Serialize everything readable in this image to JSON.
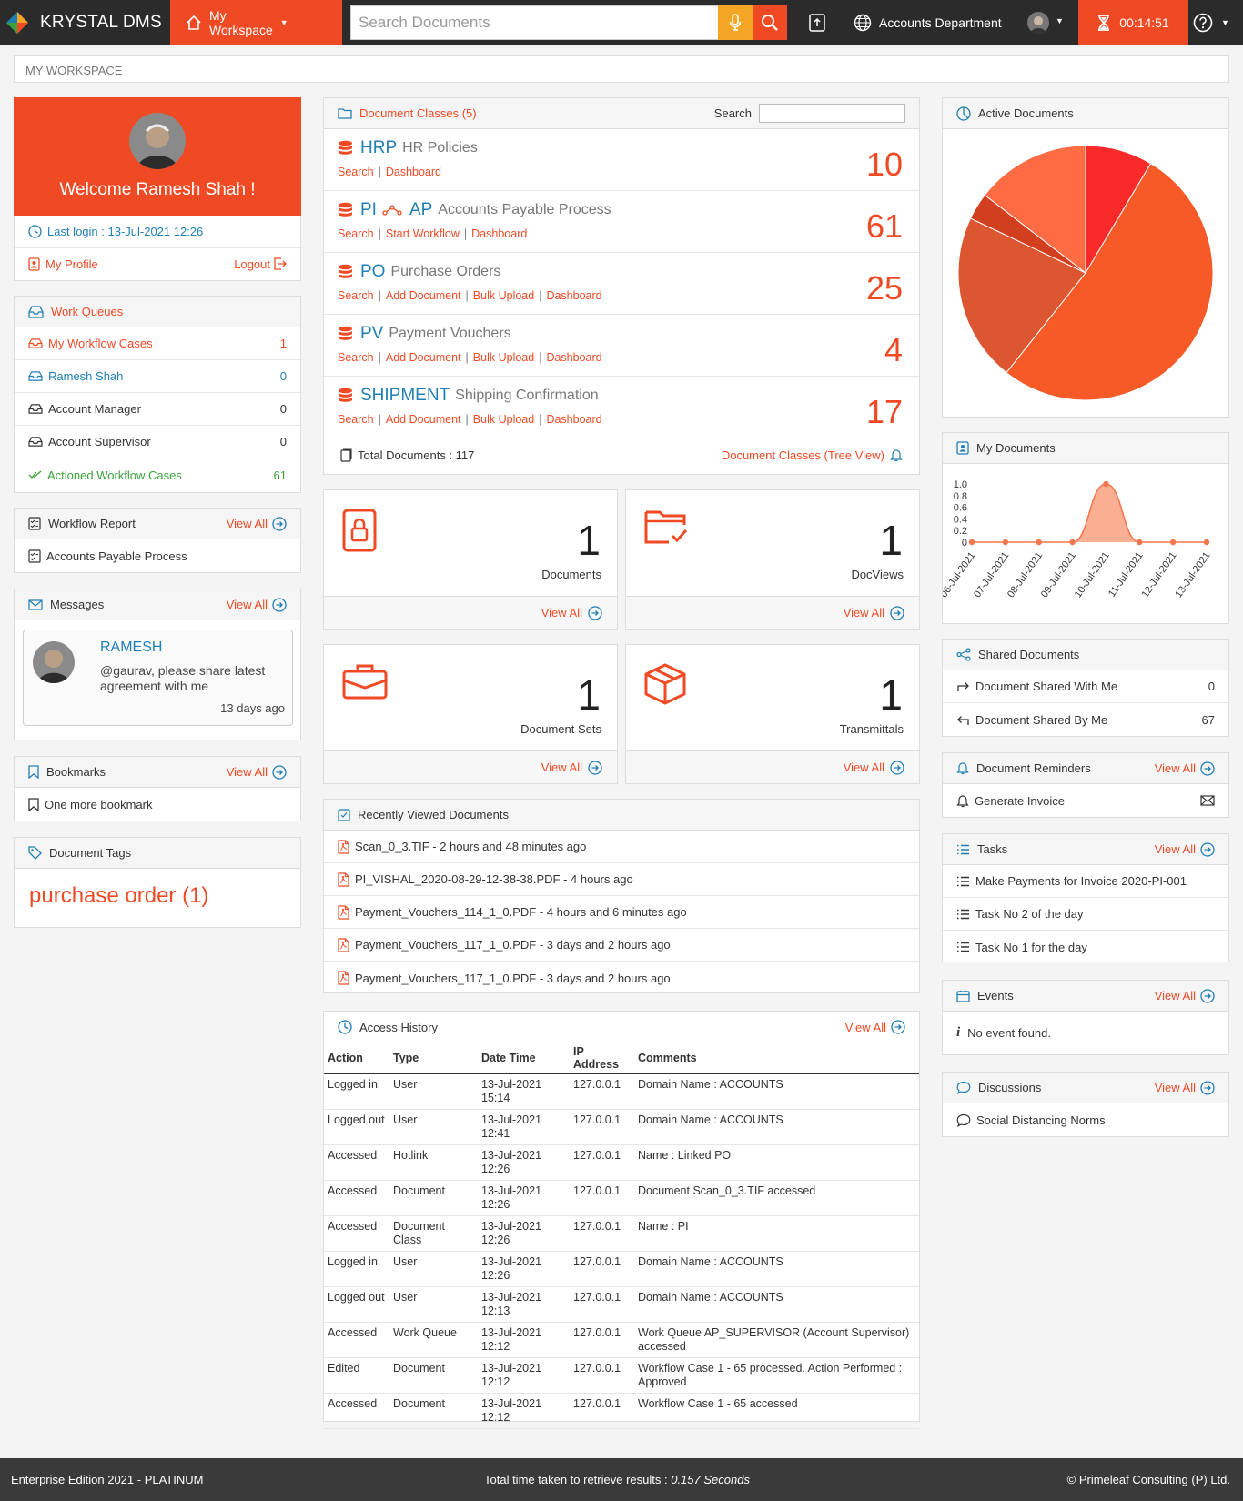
{
  "header": {
    "brand": "KRYSTAL DMS",
    "workspace_label": "My Workspace",
    "search_placeholder": "Search Documents",
    "department": "Accounts Department",
    "timer": "00:14:51"
  },
  "breadcrumb": "MY WORKSPACE",
  "welcome": {
    "text": "Welcome Ramesh Shah !",
    "last_login": "Last login : 13-Jul-2021 12:26",
    "profile": "My Profile",
    "logout": "Logout"
  },
  "work_queues": {
    "title": "Work Queues",
    "items": [
      {
        "label": "My Workflow Cases",
        "count": "1"
      },
      {
        "label": "Ramesh Shah",
        "count": "0"
      },
      {
        "label": "Account Manager",
        "count": "0"
      },
      {
        "label": "Account Supervisor",
        "count": "0"
      },
      {
        "label": "Actioned Workflow Cases",
        "count": "61"
      }
    ]
  },
  "workflow_report": {
    "title": "Workflow Report",
    "view_all": "View All",
    "item": "Accounts Payable Process"
  },
  "messages": {
    "title": "Messages",
    "view_all": "View All",
    "sender": "RAMESH",
    "text": "@gaurav, please share latest agreement with me",
    "time": "13 days ago"
  },
  "bookmarks": {
    "title": "Bookmarks",
    "view_all": "View All",
    "item": "One more bookmark"
  },
  "tags": {
    "title": "Document Tags",
    "item": "purchase order (1)"
  },
  "doc_classes": {
    "title": "Document Classes (5)",
    "search_label": "Search",
    "items": [
      {
        "code": "HRP",
        "name": "HR Policies",
        "links": [
          "Search",
          "Dashboard"
        ],
        "count": "10"
      },
      {
        "code": "PI",
        "code2": "AP",
        "name": "Accounts Payable Process",
        "links": [
          "Search",
          "Start Workflow",
          "Dashboard"
        ],
        "count": "61"
      },
      {
        "code": "PO",
        "name": "Purchase Orders",
        "links": [
          "Search",
          "Add Document",
          "Bulk Upload",
          "Dashboard"
        ],
        "count": "25"
      },
      {
        "code": "PV",
        "name": "Payment Vouchers",
        "links": [
          "Search",
          "Add Document",
          "Bulk Upload",
          "Dashboard"
        ],
        "count": "4"
      },
      {
        "code": "SHIPMENT",
        "name": "Shipping Confirmation",
        "links": [
          "Search",
          "Add Document",
          "Bulk Upload",
          "Dashboard"
        ],
        "count": "17"
      }
    ],
    "total": "Total Documents : 117",
    "tree_view": "Document Classes (Tree View)"
  },
  "tiles": [
    {
      "count": "1",
      "label": "Documents",
      "view_all": "View All"
    },
    {
      "count": "1",
      "label": "DocViews",
      "view_all": "View All"
    },
    {
      "count": "1",
      "label": "Document Sets",
      "view_all": "View All"
    },
    {
      "count": "1",
      "label": "Transmittals",
      "view_all": "View All"
    }
  ],
  "recent": {
    "title": "Recently Viewed Documents",
    "items": [
      "Scan_0_3.TIF - 2 hours and 48 minutes ago",
      "PI_VISHAL_2020-08-29-12-38-38.PDF - 4 hours ago",
      "Payment_Vouchers_114_1_0.PDF - 4 hours and 6 minutes ago",
      "Payment_Vouchers_117_1_0.PDF - 3 days and 2 hours ago",
      "Payment_Vouchers_117_1_0.PDF - 3 days and 2 hours ago"
    ]
  },
  "access": {
    "title": "Access History",
    "view_all": "View All",
    "columns": [
      "Action",
      "Type",
      "Date Time",
      "IP Address",
      "Comments"
    ],
    "rows": [
      [
        "Logged in",
        "User",
        "13-Jul-2021 15:14",
        "127.0.0.1",
        "Domain Name : ACCOUNTS"
      ],
      [
        "Logged out",
        "User",
        "13-Jul-2021 12:41",
        "127.0.0.1",
        "Domain Name : ACCOUNTS"
      ],
      [
        "Accessed",
        "Hotlink",
        "13-Jul-2021 12:26",
        "127.0.0.1",
        "Name : Linked PO"
      ],
      [
        "Accessed",
        "Document",
        "13-Jul-2021 12:26",
        "127.0.0.1",
        "Document Scan_0_3.TIF accessed"
      ],
      [
        "Accessed",
        "Document Class",
        "13-Jul-2021 12:26",
        "127.0.0.1",
        "Name : PI"
      ],
      [
        "Logged in",
        "User",
        "13-Jul-2021 12:26",
        "127.0.0.1",
        "Domain Name : ACCOUNTS"
      ],
      [
        "Logged out",
        "User",
        "13-Jul-2021 12:13",
        "127.0.0.1",
        "Domain Name : ACCOUNTS"
      ],
      [
        "Accessed",
        "Work Queue",
        "13-Jul-2021 12:12",
        "127.0.0.1",
        "Work Queue AP_SUPERVISOR (Account Supervisor) accessed"
      ],
      [
        "Edited",
        "Document",
        "13-Jul-2021 12:12",
        "127.0.0.1",
        "Workflow Case 1 - 65 processed. Action Performed : Approved"
      ],
      [
        "Accessed",
        "Document",
        "13-Jul-2021 12:12",
        "127.0.0.1",
        "Workflow Case 1 - 65 accessed"
      ]
    ]
  },
  "active_docs": {
    "title": "Active Documents"
  },
  "my_docs": {
    "title": "My Documents"
  },
  "chart_data": [
    {
      "type": "pie",
      "values": [
        10,
        61,
        25,
        4,
        17
      ],
      "colors": [
        "#fb2a2a",
        "#f55a27",
        "#dd5632",
        "#d23f1e",
        "#ff6c44"
      ]
    },
    {
      "type": "area",
      "categories": [
        "06-Jul-2021",
        "07-Jul-2021",
        "08-Jul-2021",
        "09-Jul-2021",
        "10-Jul-2021",
        "11-Jul-2021",
        "12-Jul-2021",
        "13-Jul-2021"
      ],
      "values": [
        0,
        0,
        0,
        0,
        1,
        0,
        0,
        0
      ],
      "yticks": [
        "1.0",
        "0.8",
        "0.6",
        "0.4",
        "0.2",
        "0"
      ],
      "ylim": [
        0,
        1
      ],
      "color": "#f4754d"
    }
  ],
  "shared": {
    "title": "Shared Documents",
    "items": [
      {
        "label": "Document Shared With Me",
        "count": "0"
      },
      {
        "label": "Document Shared By Me",
        "count": "67"
      }
    ]
  },
  "reminders": {
    "title": "Document Reminders",
    "view_all": "View All",
    "item": "Generate Invoice"
  },
  "tasks": {
    "title": "Tasks",
    "view_all": "View All",
    "items": [
      "Make Payments for Invoice 2020-PI-001",
      "Task No 2 of the day",
      "Task No 1 for the day"
    ]
  },
  "events": {
    "title": "Events",
    "view_all": "View All",
    "item": "No event found."
  },
  "discussions": {
    "title": "Discussions",
    "view_all": "View All",
    "item": "Social Distancing Norms"
  },
  "footer": {
    "edition": "Enterprise Edition 2021 - PLATINUM",
    "time_label": "Total time taken to retrieve results :",
    "time_value": "0.157 Seconds",
    "copyright": "© Primeleaf Consulting (P) Ltd."
  }
}
